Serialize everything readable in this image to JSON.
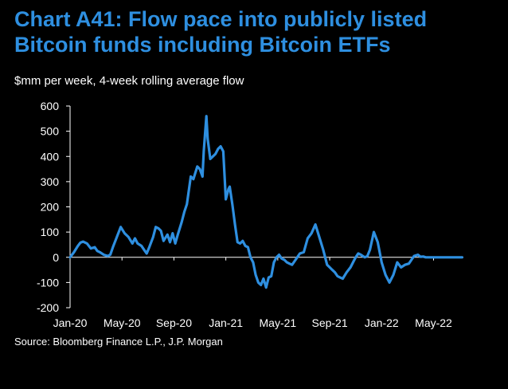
{
  "title_lines": [
    "Chart A41: Flow pace into publicly listed",
    "Bitcoin funds including Bitcoin ETFs"
  ],
  "subtitle": "$mm per week, 4-week rolling average flow",
  "source": "Source: Bloomberg Finance L.P., J.P. Morgan",
  "colors": {
    "title": "#2e8fe0",
    "line": "#2e8fe0",
    "axis": "#ffffff",
    "background": "#000000"
  },
  "chart_data": {
    "type": "line",
    "title": "Chart A41: Flow pace into publicly listed Bitcoin funds including Bitcoin ETFs",
    "ylabel": "$mm per week, 4-week rolling average flow",
    "xlabel": "",
    "ylim": [
      -200,
      600
    ],
    "yticks": [
      600,
      500,
      400,
      300,
      200,
      100,
      0,
      -100,
      -200
    ],
    "ytick_labels": [
      "600",
      "500",
      "400",
      "300",
      "200",
      "100",
      "0",
      "-100",
      "-200"
    ],
    "xlim": [
      0,
      30.3
    ],
    "xtick_labels": [
      "Jan-20",
      "May-20",
      "Sep-20",
      "Jan-21",
      "May-21",
      "Sep-21",
      "Jan-22",
      "May-22"
    ],
    "xtick_positions": [
      0,
      4,
      8,
      12,
      16,
      20,
      24,
      28
    ],
    "grid": false,
    "series": [
      {
        "name": "4-week rolling average flow",
        "x": [
          0,
          0.3,
          0.6,
          0.8,
          1.0,
          1.3,
          1.6,
          1.9,
          2.1,
          2.3,
          2.6,
          2.9,
          3.1,
          3.3,
          3.6,
          3.9,
          4.2,
          4.5,
          4.8,
          5.0,
          5.2,
          5.5,
          5.7,
          5.9,
          6.1,
          6.4,
          6.6,
          6.8,
          7.0,
          7.2,
          7.5,
          7.7,
          7.9,
          8.1,
          8.3,
          8.6,
          8.8,
          9.0,
          9.3,
          9.5,
          9.8,
          10.0,
          10.2,
          10.3,
          10.5,
          10.6,
          10.8,
          11.0,
          11.2,
          11.4,
          11.6,
          11.8,
          12.0,
          12.2,
          12.3,
          12.5,
          12.7,
          12.9,
          13.1,
          13.3,
          13.5,
          13.7,
          13.9,
          14.1,
          14.3,
          14.5,
          14.7,
          14.9,
          15.1,
          15.3,
          15.5,
          15.7,
          15.9,
          16.1,
          16.3,
          16.5,
          16.7,
          16.9,
          17.1,
          17.3,
          17.5,
          17.7,
          18.0,
          18.3,
          18.6,
          18.9,
          19.2,
          19.5,
          19.8,
          20.0,
          20.2,
          20.4,
          20.6,
          20.8,
          21.0,
          21.3,
          21.6,
          21.8,
          22.0,
          22.2,
          22.4,
          22.7,
          22.9,
          23.1,
          23.4,
          23.7,
          24.0,
          24.3,
          24.6,
          24.9,
          25.2,
          25.5,
          25.8,
          26.1,
          26.3,
          26.5,
          26.8,
          27.0,
          27.2,
          27.4,
          27.6,
          27.8,
          28.0,
          28.2,
          28.5,
          28.8,
          29.1,
          29.4,
          29.7,
          30.0,
          30.2
        ],
        "values": [
          0,
          20,
          45,
          58,
          62,
          55,
          35,
          40,
          25,
          20,
          10,
          5,
          10,
          40,
          80,
          120,
          95,
          80,
          55,
          75,
          55,
          45,
          30,
          15,
          40,
          80,
          120,
          115,
          105,
          65,
          90,
          60,
          95,
          55,
          90,
          140,
          180,
          210,
          320,
          310,
          360,
          350,
          320,
          420,
          560,
          470,
          390,
          400,
          410,
          430,
          440,
          420,
          230,
          270,
          280,
          210,
          130,
          60,
          55,
          65,
          45,
          40,
          0,
          -20,
          -70,
          -100,
          -110,
          -85,
          -120,
          -80,
          -75,
          -20,
          0,
          10,
          -5,
          -10,
          -20,
          -25,
          -30,
          -15,
          0,
          15,
          20,
          75,
          95,
          130,
          80,
          30,
          -30,
          -40,
          -50,
          -60,
          -75,
          -80,
          -85,
          -60,
          -40,
          -20,
          0,
          15,
          10,
          0,
          5,
          30,
          100,
          60,
          -20,
          -70,
          -100,
          -70,
          -20,
          -40,
          -30,
          -25,
          -10,
          5,
          10,
          2,
          3,
          0,
          0,
          0,
          0,
          0,
          0,
          0,
          0,
          0,
          0,
          0,
          0
        ]
      }
    ]
  }
}
